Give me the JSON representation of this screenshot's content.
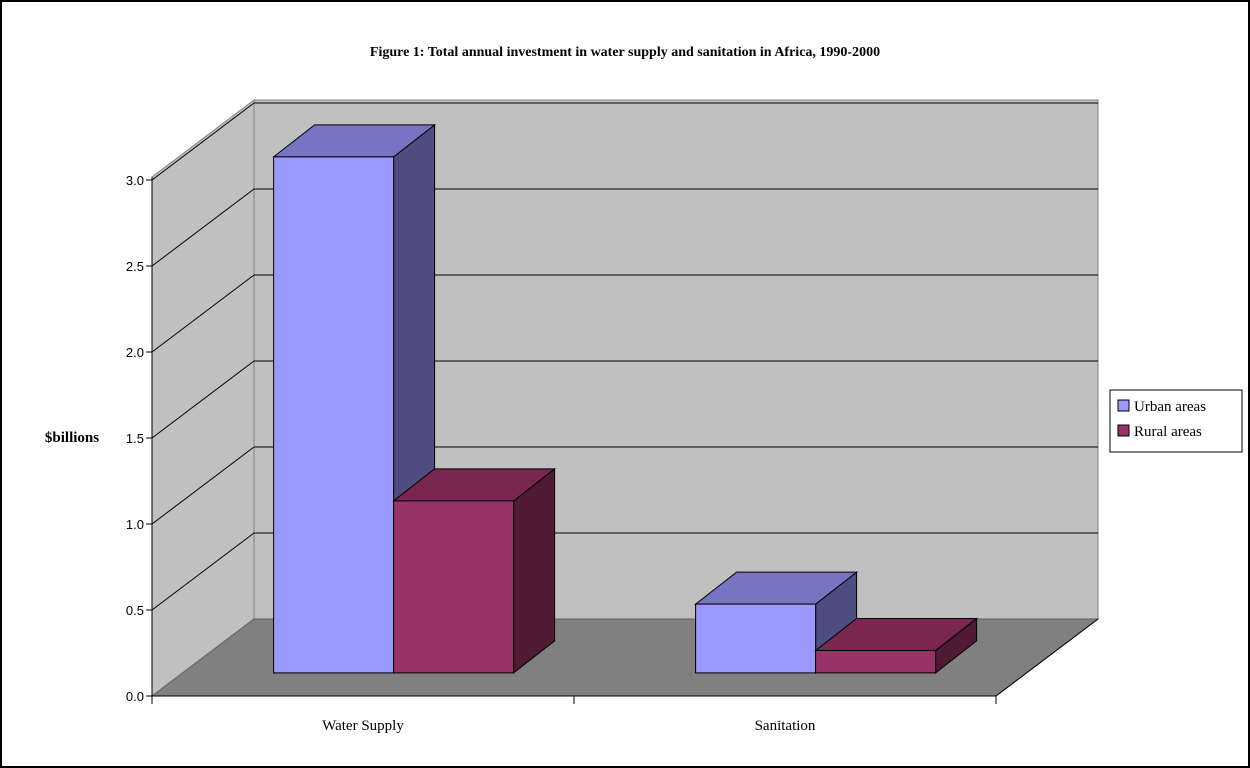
{
  "chart_data": {
    "type": "bar",
    "title": "Figure 1: Total annual investment in water supply and sanitation in Africa, 1990-2000",
    "ylabel": "$billions",
    "xlabel": "",
    "categories": [
      "Water Supply",
      "Sanitation"
    ],
    "series": [
      {
        "name": "Urban areas",
        "values": [
          3.0,
          0.4
        ],
        "color": "#9999ff",
        "top_color": "#7575c4",
        "side_color": "#4d4d80"
      },
      {
        "name": "Rural areas",
        "values": [
          1.0,
          0.13
        ],
        "color": "#993366",
        "top_color": "#7a2650",
        "side_color": "#4f1a33"
      }
    ],
    "yticks": [
      "0.0",
      "0.5",
      "1.0",
      "1.5",
      "2.0",
      "2.5",
      "3.0"
    ],
    "ylim": [
      0,
      3.0
    ],
    "grid": true,
    "legend_position": "right",
    "three_d": true,
    "colors": {
      "back_wall": "#c0c0c0",
      "side_wall": "#c0c0c0",
      "floor": "#808080",
      "gridline": "#000000"
    }
  }
}
